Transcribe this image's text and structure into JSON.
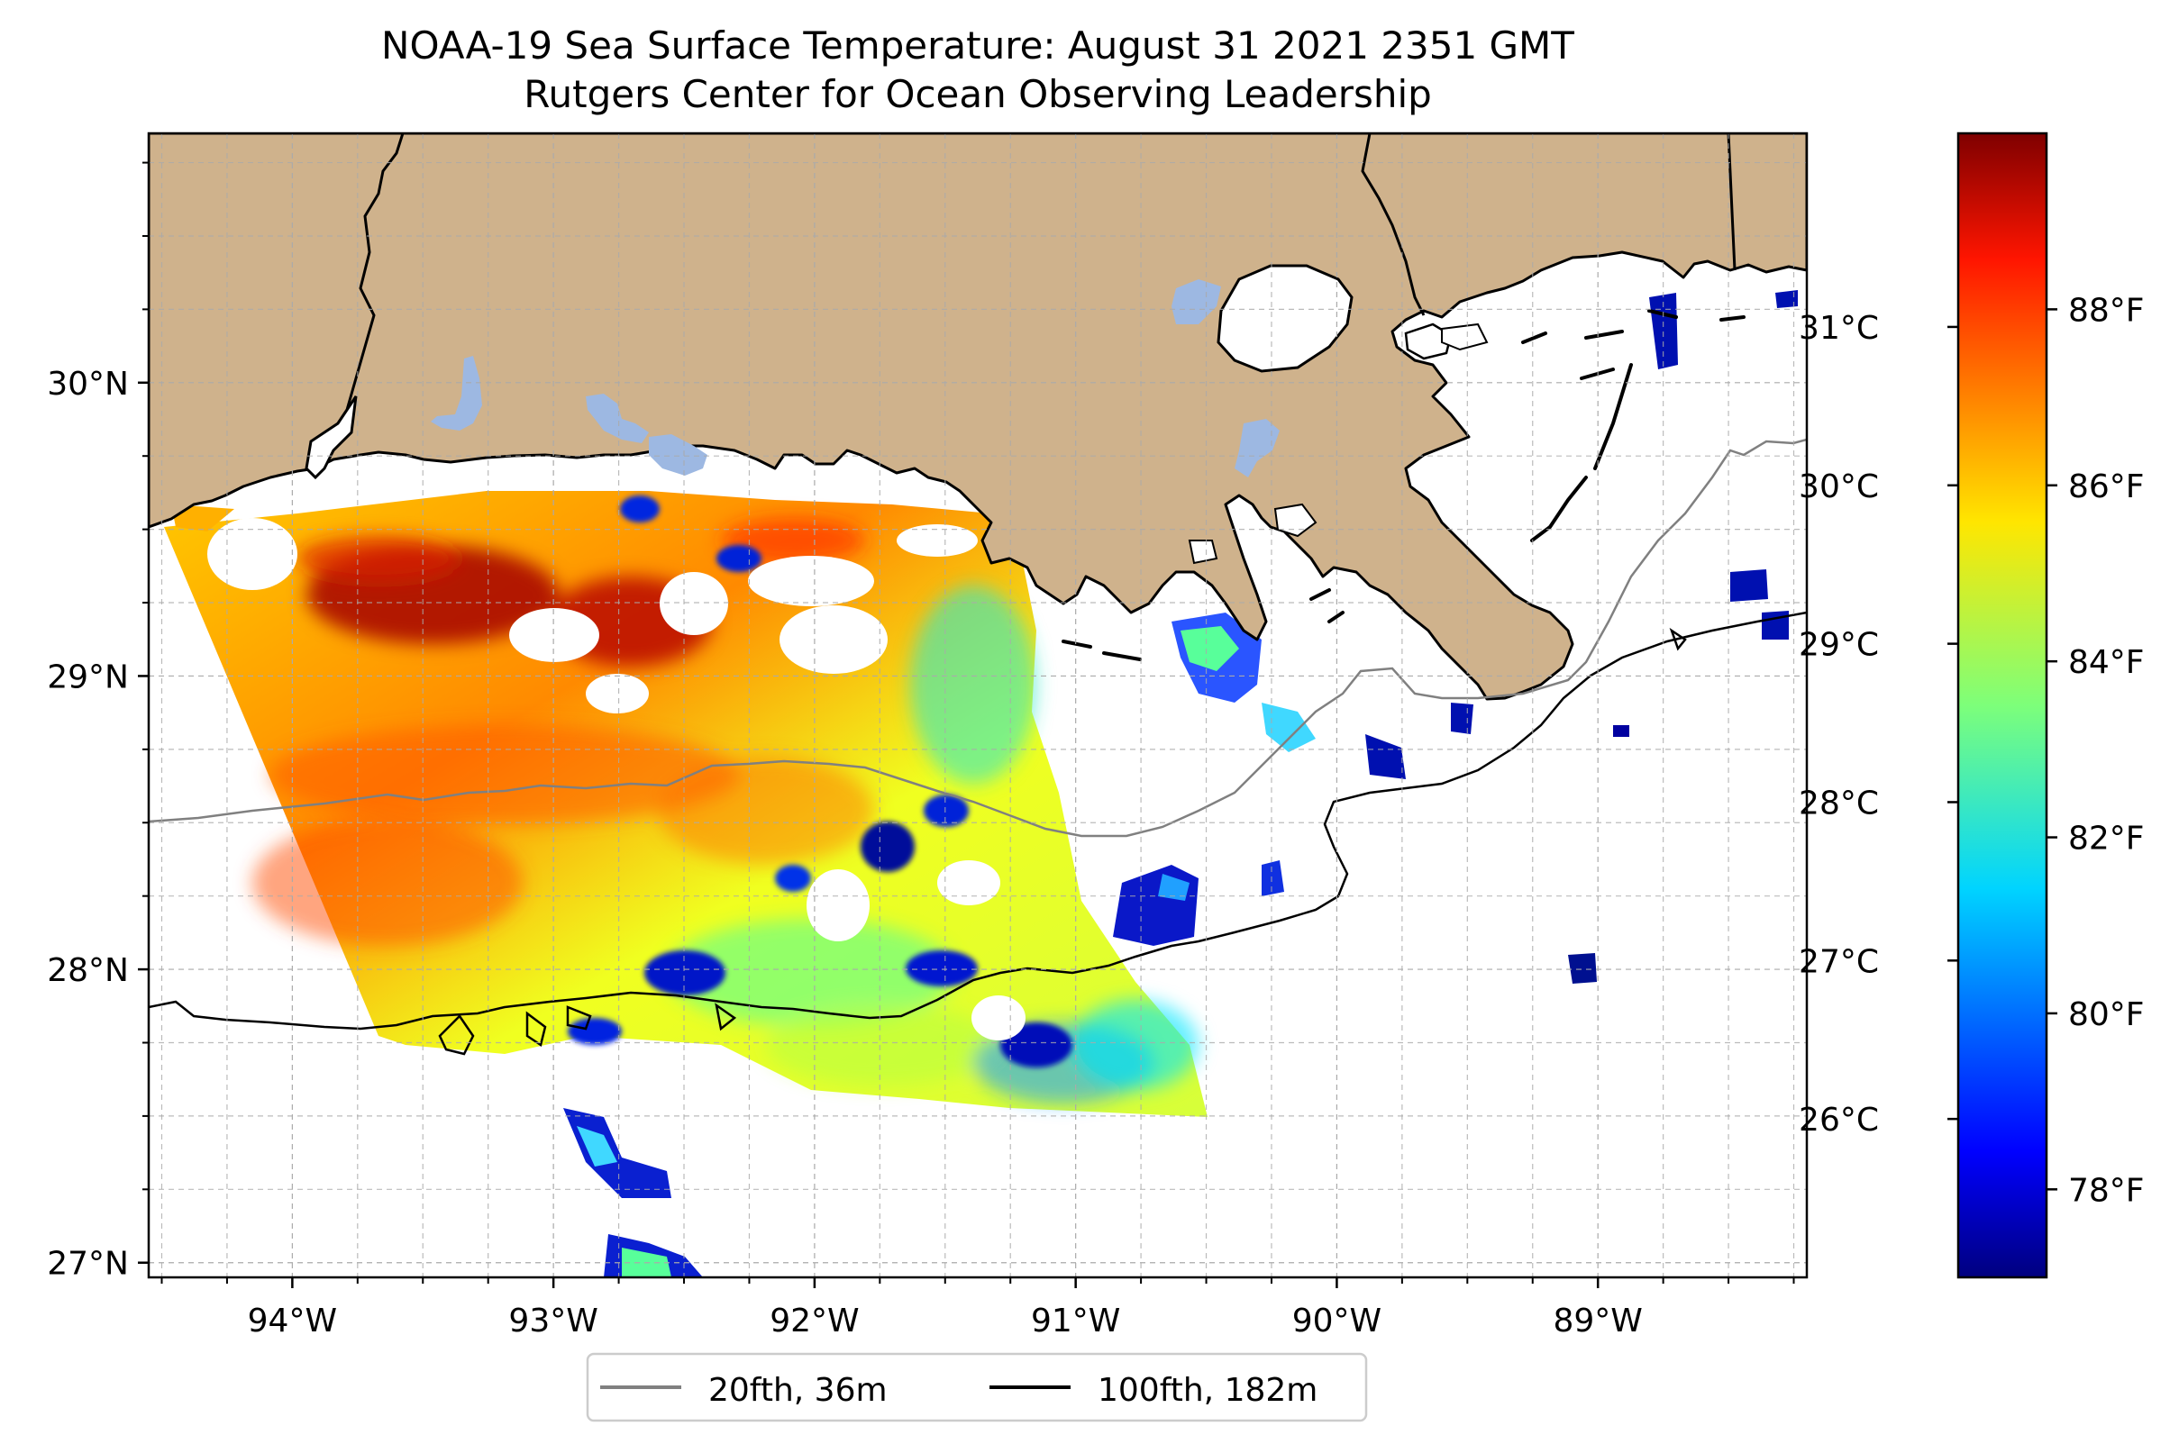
{
  "title": "NOAA-19 Sea Surface Temperature: August 31 2021 2351 GMT",
  "subtitle": "Rutgers Center for Ocean Observing Leadership",
  "map": {
    "lon_range": [
      -94.55,
      -88.2
    ],
    "lat_range": [
      26.95,
      30.85
    ],
    "lon_ticks": [
      "94°W",
      "93°W",
      "92°W",
      "91°W",
      "90°W",
      "89°W"
    ],
    "lat_ticks": [
      "27°N",
      "28°N",
      "29°N",
      "30°N"
    ],
    "gridlines": true,
    "land_color": "#cfb28c",
    "lake_color": "#9db8e2",
    "coast_color": "#000000"
  },
  "isobaths": [
    {
      "name": "20fth, 36m",
      "color": "#808080"
    },
    {
      "name": "100fth, 182m",
      "color": "#000000"
    }
  ],
  "colorbar": {
    "colormap": "jet",
    "celsius_ticks": [
      "26°C",
      "27°C",
      "28°C",
      "29°C",
      "30°C",
      "31°C"
    ],
    "fahrenheit_ticks": [
      "78°F",
      "80°F",
      "82°F",
      "84°F",
      "86°F",
      "88°F"
    ],
    "fahrenheit_range": [
      77,
      90
    ]
  },
  "legend": {
    "placement": "bottom-center",
    "items": [
      {
        "label": "20fth, 36m",
        "color": "#808080"
      },
      {
        "label": "100fth, 182m",
        "color": "#000000"
      }
    ]
  }
}
